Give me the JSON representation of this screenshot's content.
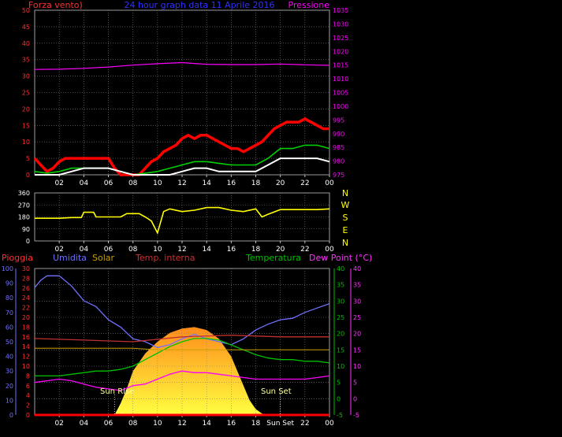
{
  "header": {
    "left_title": "Forza vento)",
    "center_title": "24 hour graph data   11 Aprile 2016",
    "right_title": "Pressione"
  },
  "bottom_labels": {
    "pioggia": "Pioggia",
    "umidita": "Umidita",
    "solar": "Solar",
    "temp_interna": "Temp. interna",
    "temperatura": "Temperatura",
    "dew_point": "Dew Point (°C)"
  },
  "compass": [
    "N",
    "W",
    "S",
    "E",
    "N"
  ],
  "sun_labels": {
    "sun_rise": "Sun Rise",
    "sun_set": "Sun Set",
    "sun_set_axis": "Sun Set"
  },
  "colors": {
    "wind_gust": "#ff0000",
    "wind_avg": "#00d000",
    "wind_min": "#ffffff",
    "pressure": "#ff00ff",
    "direction": "#ffff00",
    "rain": "#ff0000",
    "humidity": "#7070ff",
    "solar": "#c8a000",
    "temp_inside": "#c03030",
    "temperature": "#00c000",
    "dew_point": "#ff00ff",
    "grid": "#808080"
  },
  "chart_data": [
    {
      "type": "line",
      "panel": "wind-pressure",
      "x_ticks": [
        "02",
        "04",
        "06",
        "08",
        "10",
        "12",
        "14",
        "16",
        "18",
        "20",
        "22",
        "00"
      ],
      "xlim_hours": [
        0,
        24
      ],
      "y_left": {
        "label": "Forza vento)",
        "ticks": [
          0,
          5,
          10,
          15,
          20,
          25,
          30,
          35,
          40,
          45,
          50
        ],
        "ylim": [
          0,
          50
        ]
      },
      "y_right": {
        "label": "Pressione",
        "ticks": [
          975,
          980,
          985,
          990,
          995,
          1000,
          1005,
          1010,
          1015,
          1020,
          1025,
          1030,
          1035
        ],
        "ylim": [
          975,
          1035
        ]
      },
      "series": [
        {
          "name": "Pressione",
          "axis": "right",
          "x": [
            0,
            2,
            4,
            6,
            8,
            10,
            12,
            13,
            14,
            16,
            18,
            20,
            22,
            24
          ],
          "y": [
            1013.4,
            1013.5,
            1013.8,
            1014.3,
            1015.0,
            1015.5,
            1015.9,
            1015.6,
            1015.3,
            1015.2,
            1015.2,
            1015.4,
            1015.1,
            1014.9
          ]
        },
        {
          "axis": "left",
          "role": "gust",
          "x": [
            0,
            0.5,
            1,
            1.5,
            2,
            2.5,
            3,
            3.5,
            4,
            4.5,
            5,
            5.5,
            6,
            6.5,
            7,
            7.5,
            8,
            8.5,
            9,
            9.5,
            10,
            10.5,
            11,
            11.5,
            12,
            12.5,
            13,
            13.5,
            14,
            14.5,
            15,
            15.5,
            16,
            16.5,
            17,
            17.5,
            18,
            18.5,
            19,
            19.5,
            20,
            20.5,
            21,
            21.5,
            22,
            22.5,
            23,
            23.5,
            24
          ],
          "y": [
            5,
            3,
            1,
            2,
            4,
            5,
            5,
            5,
            5,
            5,
            5,
            5,
            5,
            2,
            0,
            0,
            0,
            0,
            2,
            4,
            5,
            7,
            8,
            9,
            11,
            12,
            11,
            12,
            12,
            11,
            10,
            9,
            8,
            8,
            7,
            8,
            9,
            10,
            12,
            14,
            15,
            16,
            16,
            16,
            17,
            16,
            15,
            14,
            14
          ]
        },
        {
          "axis": "left",
          "role": "average",
          "x": [
            0,
            1,
            2,
            3,
            4,
            5,
            6,
            7,
            8,
            9,
            10,
            11,
            12,
            13,
            14,
            15,
            16,
            17,
            18,
            19,
            20,
            21,
            22,
            23,
            24
          ],
          "y": [
            1,
            0.5,
            1,
            2,
            2,
            2,
            2,
            1,
            0,
            0.5,
            1,
            2,
            3,
            4,
            4,
            3.5,
            3,
            3,
            3,
            5,
            8,
            8,
            9,
            9,
            8
          ]
        },
        {
          "axis": "left",
          "role": "minimum",
          "x": [
            0,
            1,
            2,
            3,
            4,
            5,
            6,
            7,
            8,
            9,
            10,
            11,
            12,
            13,
            14,
            15,
            16,
            17,
            18,
            19,
            20,
            21,
            22,
            23,
            24
          ],
          "y": [
            0,
            0,
            0,
            1,
            2,
            2,
            2,
            1,
            0,
            0,
            0,
            0,
            1,
            2,
            2,
            1,
            1,
            1,
            1,
            3,
            5,
            5,
            5,
            5,
            4
          ]
        }
      ]
    },
    {
      "type": "line",
      "panel": "wind-direction",
      "x_ticks": [
        "02",
        "04",
        "06",
        "08",
        "10",
        "12",
        "14",
        "16",
        "18",
        "20",
        "22",
        "00"
      ],
      "xlim_hours": [
        0,
        24
      ],
      "y_left": {
        "ticks": [
          0,
          90,
          180,
          270,
          360
        ],
        "ylim": [
          0,
          360
        ]
      },
      "series": [
        {
          "axis": "left",
          "x": [
            0,
            1,
            2,
            3,
            3.8,
            4,
            4.8,
            5,
            6,
            7,
            7.5,
            8.5,
            9,
            9.5,
            10,
            10.5,
            11,
            12,
            13,
            14,
            15,
            16,
            17,
            18,
            18.5,
            19,
            20,
            21,
            22,
            23,
            24
          ],
          "y": [
            170,
            170,
            170,
            175,
            175,
            215,
            215,
            180,
            180,
            180,
            205,
            205,
            180,
            150,
            60,
            220,
            240,
            220,
            230,
            250,
            250,
            230,
            220,
            240,
            180,
            200,
            235,
            235,
            235,
            235,
            240
          ]
        }
      ]
    },
    {
      "type": "line",
      "panel": "atmospheric",
      "x_ticks": [
        "02",
        "04",
        "06",
        "08",
        "10",
        "12",
        "14",
        "16",
        "18",
        "Sun Set",
        "22",
        "00"
      ],
      "xlim_hours": [
        0,
        24
      ],
      "y_humidity": {
        "label": "Umidita",
        "ticks": [
          0,
          10,
          20,
          30,
          40,
          50,
          60,
          70,
          80,
          90,
          100
        ],
        "ylim": [
          0,
          100
        ]
      },
      "y_rain": {
        "label": "Pioggia",
        "ticks": [
          0,
          2,
          4,
          6,
          8,
          10,
          12,
          14,
          16,
          18,
          20,
          22,
          24,
          26,
          28,
          30
        ],
        "ylim": [
          0,
          30
        ]
      },
      "y_temperature": {
        "label": "Temperatura",
        "ticks": [
          -5,
          0,
          5,
          10,
          15,
          20,
          25,
          30,
          35,
          40
        ],
        "ylim": [
          -5,
          40
        ]
      },
      "y_dew": {
        "label": "Dew Point (°C)",
        "ticks": [
          -5,
          0,
          5,
          10,
          15,
          20,
          25,
          30,
          35,
          40
        ],
        "ylim": [
          -5,
          40
        ]
      },
      "series": [
        {
          "name": "Umidita",
          "axis": "humidity",
          "x": [
            0,
            0.5,
            1,
            2,
            3,
            4,
            5,
            6,
            7,
            8,
            9,
            10,
            11,
            12,
            13,
            14,
            15,
            16,
            17,
            18,
            19,
            20,
            21,
            22,
            23,
            24
          ],
          "y": [
            87,
            92,
            95,
            95,
            88,
            78,
            74,
            65,
            60,
            52,
            50,
            46,
            48,
            52,
            55,
            52,
            50,
            48,
            52,
            58,
            62,
            65,
            66,
            70,
            73,
            76
          ]
        },
        {
          "name": "Temperatura",
          "axis": "temperature",
          "x": [
            0,
            1,
            2,
            3,
            4,
            5,
            6,
            7,
            8,
            9,
            10,
            11,
            12,
            13,
            14,
            15,
            16,
            17,
            18,
            19,
            20,
            21,
            22,
            23,
            24
          ],
          "y": [
            7,
            7,
            7,
            7.5,
            8,
            8.5,
            8.5,
            9,
            10,
            12,
            14,
            16,
            17.5,
            18.5,
            18.5,
            18,
            16.5,
            15,
            13.5,
            12.5,
            12,
            12,
            11.5,
            11.5,
            11
          ]
        },
        {
          "name": "Dew Point (°C)",
          "axis": "dew",
          "x": [
            0,
            1,
            2,
            3,
            4,
            5,
            6,
            7,
            8,
            9,
            10,
            11,
            12,
            13,
            14,
            15,
            16,
            17,
            18,
            19,
            20,
            21,
            22,
            23,
            24
          ],
          "y": [
            5,
            5.5,
            6,
            5.5,
            4.5,
            3.5,
            3,
            2.5,
            4,
            4.5,
            6,
            7.5,
            8.5,
            8,
            8,
            7.5,
            7,
            6.5,
            6,
            6,
            6,
            6,
            6,
            6.5,
            7
          ]
        },
        {
          "name": "Temp. interna",
          "axis": "temperature",
          "x": [
            0,
            4,
            8,
            12,
            16,
            20,
            24
          ],
          "y": [
            18.5,
            18,
            17.5,
            19,
            19.5,
            19,
            19
          ]
        },
        {
          "name": "Solar",
          "axis": "temperature",
          "x": [
            0,
            4,
            8,
            10,
            12,
            16,
            20,
            24
          ],
          "y": [
            15.5,
            15.5,
            15.5,
            15,
            15,
            15,
            15,
            15
          ]
        },
        {
          "name": "Pioggia",
          "axis": "rain",
          "x": [
            0,
            24
          ],
          "y": [
            0,
            0
          ]
        },
        {
          "role": "solar-radiation-area",
          "axis": "humidity",
          "x": [
            6.5,
            7,
            7.5,
            8,
            9,
            10,
            11,
            12,
            13,
            14,
            15,
            16,
            16.5,
            17,
            17.5,
            18,
            18.5,
            19
          ],
          "y": [
            0,
            8,
            18,
            30,
            42,
            50,
            56,
            59,
            60,
            58,
            52,
            40,
            30,
            20,
            10,
            4,
            1,
            0
          ]
        }
      ]
    }
  ]
}
